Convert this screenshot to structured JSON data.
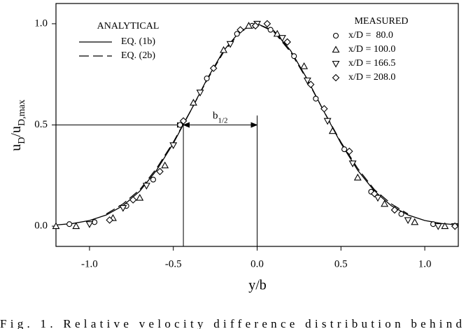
{
  "chart_data": {
    "type": "scatter",
    "ylabel": [
      "u",
      "D",
      "/u",
      "D,max"
    ],
    "xlabel": "y/b",
    "caption": "Fig. 1. Relative velocity difference distribution behind",
    "xlim": [
      -1.2,
      1.2
    ],
    "ylim": [
      -0.1,
      1.1
    ],
    "xticks": [
      {
        "value": -1,
        "label": "-1.0"
      },
      {
        "value": -0.5,
        "label": "-0.5"
      },
      {
        "value": 0,
        "label": "0.0"
      },
      {
        "value": 0.5,
        "label": "0.5"
      },
      {
        "value": 1,
        "label": "1.0"
      }
    ],
    "yticks": [
      {
        "value": 0,
        "label": "0.0"
      },
      {
        "value": 0.5,
        "label": "0.5"
      },
      {
        "value": 1,
        "label": "1.0"
      }
    ],
    "legend_titles": [
      "ANALYTICAL",
      "MEASURED"
    ],
    "annotation": {
      "x": -0.44,
      "center": 0,
      "y": 0.5,
      "label": "b",
      "label_sub": "1/2"
    },
    "series": [
      {
        "name": "EQ. (1b)",
        "mode": "line",
        "dash": "solid",
        "color": "#000000",
        "x": [
          -1.2,
          -1.1,
          -1.0,
          -0.9,
          -0.8,
          -0.7,
          -0.6,
          -0.5,
          -0.4,
          -0.3,
          -0.2,
          -0.1,
          0,
          0.1,
          0.2,
          0.3,
          0.4,
          0.5,
          0.6,
          0.7,
          0.8,
          0.9,
          1.0,
          1.1,
          1.2
        ],
        "values": [
          0.006,
          0.013,
          0.028,
          0.055,
          0.101,
          0.173,
          0.276,
          0.409,
          0.564,
          0.725,
          0.867,
          0.965,
          1,
          0.965,
          0.867,
          0.725,
          0.564,
          0.409,
          0.276,
          0.173,
          0.101,
          0.055,
          0.028,
          0.013,
          0.006
        ]
      },
      {
        "name": "EQ. (2b)",
        "mode": "line",
        "dash": "dashed",
        "color": "#000000",
        "x": [
          -0.9,
          -0.8,
          -0.7,
          -0.6,
          -0.5,
          -0.4,
          -0.3,
          -0.2,
          -0.1,
          0,
          0.1,
          0.2,
          0.3,
          0.4,
          0.5,
          0.6,
          0.7,
          0.8,
          0.9
        ],
        "values": [
          0.06,
          0.11,
          0.18,
          0.285,
          0.415,
          0.565,
          0.72,
          0.86,
          0.96,
          1,
          0.96,
          0.86,
          0.72,
          0.565,
          0.415,
          0.285,
          0.18,
          0.11,
          0.06
        ]
      },
      {
        "name": "x/D =  80.0",
        "mode": "marker",
        "marker": "circle",
        "color": "#000000",
        "x": [
          -1.12,
          -0.97,
          -0.78,
          -0.62,
          -0.46,
          -0.3,
          -0.12,
          -0.03,
          0.08,
          0.22,
          0.35,
          0.52,
          0.68,
          0.86,
          1.05
        ],
        "values": [
          0.01,
          0.02,
          0.1,
          0.23,
          0.5,
          0.73,
          0.95,
          0.99,
          0.97,
          0.84,
          0.63,
          0.38,
          0.17,
          0.06,
          0.01
        ]
      },
      {
        "name": "x/D = 100.0",
        "mode": "marker",
        "marker": "triangle-up",
        "color": "#000000",
        "x": [
          -1.2,
          -1.08,
          -0.86,
          -0.7,
          -0.55,
          -0.38,
          -0.2,
          -0.05,
          0.12,
          0.28,
          0.45,
          0.6,
          0.76,
          0.94,
          1.12
        ],
        "values": [
          0.0,
          0.0,
          0.04,
          0.14,
          0.3,
          0.61,
          0.87,
          0.99,
          0.95,
          0.79,
          0.47,
          0.24,
          0.11,
          0.02,
          0.0
        ]
      },
      {
        "name": "x/D = 166.5",
        "mode": "marker",
        "marker": "triangle-down",
        "color": "#000000",
        "x": [
          -1.0,
          -0.8,
          -0.66,
          -0.5,
          -0.34,
          -0.16,
          0.0,
          0.15,
          0.3,
          0.42,
          0.57,
          0.72,
          0.9,
          1.08,
          1.18
        ],
        "values": [
          0.01,
          0.09,
          0.2,
          0.4,
          0.66,
          0.9,
          1.0,
          0.93,
          0.72,
          0.52,
          0.31,
          0.14,
          0.03,
          0.0,
          0.0
        ]
      },
      {
        "name": "x/D = 208.0",
        "mode": "marker",
        "marker": "diamond",
        "color": "#000000",
        "x": [
          -0.88,
          -0.74,
          -0.58,
          -0.44,
          -0.26,
          -0.1,
          -0.01,
          0.06,
          0.18,
          0.32,
          0.4,
          0.55,
          0.7,
          0.82,
          1.18
        ],
        "values": [
          0.03,
          0.13,
          0.27,
          0.52,
          0.78,
          0.97,
          0.99,
          1.0,
          0.91,
          0.7,
          0.58,
          0.37,
          0.16,
          0.08,
          0.0
        ]
      }
    ]
  }
}
